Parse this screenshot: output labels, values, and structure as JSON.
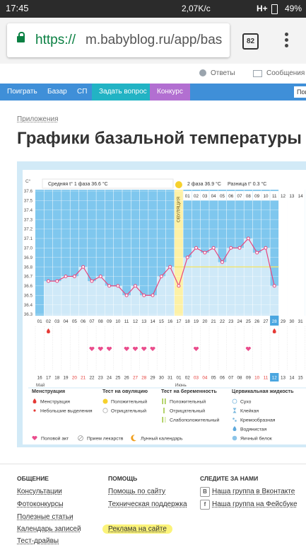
{
  "status_bar": {
    "time": "17:45",
    "speed": "2,07K/c",
    "network": "H+",
    "battery": "49%"
  },
  "browser": {
    "url_scheme": "https://",
    "url_rest": "m.babyblog.ru/app/bas",
    "tabs": "82"
  },
  "header": {
    "links": [
      "Ответы",
      "Сообщения"
    ]
  },
  "nav": {
    "items": [
      "Поиграть",
      "Базар",
      "СП",
      "Задать вопрос",
      "Конкурс"
    ],
    "search": "Пои"
  },
  "breadcrumb": "Приложения",
  "title": "Графики базальной температуры",
  "chart_data": {
    "type": "line",
    "y_unit": "С°",
    "phase1": "Средняя t° 1 фаза 36.6 °C",
    "phase2": "2 фаза 36.9 °C",
    "difference": "Разница t° 0.3 °C",
    "ovulation_label": "ОВУЛЯЦИЯ",
    "categories": [
      "01",
      "02",
      "03",
      "04",
      "05",
      "06",
      "07",
      "08",
      "09",
      "10",
      "11",
      "12",
      "13",
      "14",
      "15",
      "16",
      "17",
      "18",
      "19",
      "20",
      "21",
      "22",
      "23",
      "24",
      "25",
      "26",
      "27",
      "28",
      "29",
      "30",
      "31"
    ],
    "values": [
      null,
      36.65,
      36.65,
      36.7,
      36.7,
      36.8,
      36.65,
      36.7,
      36.6,
      36.6,
      36.5,
      36.6,
      36.5,
      36.5,
      36.7,
      36.8,
      36.6,
      36.9,
      37.0,
      36.95,
      37.0,
      36.85,
      37.0,
      37.0,
      37.1,
      36.95,
      37.0,
      36.6,
      null,
      null,
      null
    ],
    "color": "#e8457d",
    "ylim": [
      36.3,
      37.6
    ],
    "yticks": [
      37.6,
      37.5,
      37.4,
      37.3,
      37.2,
      37.1,
      {
        "value": 37,
        "label": "37.0"
      },
      36.9,
      36.8,
      36.7,
      36.6,
      36.5,
      36.4,
      36.3
    ],
    "grid": true,
    "coverline": 36.8,
    "ovulation_index": 16,
    "today_index": 27,
    "luteal_start": 17,
    "luteal_days": [
      "01",
      "02",
      "03",
      "04",
      "05",
      "06",
      "07",
      "08",
      "09",
      "10",
      "11",
      "12",
      "13",
      "14"
    ],
    "dates": [
      "16",
      "17",
      "18",
      "19",
      "20",
      "21",
      "22",
      "23",
      "24",
      "25",
      "26",
      "27",
      "28",
      "29",
      "30",
      "31",
      "01",
      "02",
      "03",
      "04",
      "05",
      "06",
      "07",
      "08",
      "09",
      "10",
      "11",
      "12",
      "13",
      "14",
      "15"
    ],
    "weekends": [
      4,
      5,
      11,
      12,
      18,
      19,
      25,
      26
    ],
    "months": [
      "Май",
      "Июнь"
    ],
    "month_starts": [
      0,
      16
    ],
    "menstruation": [
      1,
      27
    ],
    "intercourse": [
      6,
      7,
      8,
      10,
      11,
      12,
      13,
      18,
      24
    ]
  },
  "legend": {
    "groups": [
      {
        "title": "Менструация",
        "items": [
          "Менструация",
          "Небольшие выделения"
        ]
      },
      {
        "title": "Тест на овуляцию",
        "items": [
          "Положительный",
          "Отрицательный"
        ]
      },
      {
        "title": "Тест на беременность",
        "items": [
          "Положительный",
          "Отрицательный",
          "Слабоположительный"
        ]
      },
      {
        "title": "Цервикальная жидкость",
        "items": [
          "Сухо",
          "Клейкая",
          "Кремообразная",
          "Водянистая",
          "Яичный белок"
        ]
      }
    ],
    "extra": [
      "Половой акт",
      "Прием лекарств",
      "Лунный календарь"
    ]
  },
  "footer": {
    "columns": [
      {
        "title": "ОБЩЕНИЕ",
        "links": [
          "Консультации",
          "Фотоконкурсы",
          "Полезные статьи",
          "Календарь записей",
          "Тест-драйвы"
        ]
      },
      {
        "title": "ПОМОЩЬ",
        "links": [
          "Помощь по сайту",
          "Техническая поддержка",
          "Реклама на сайте"
        ]
      },
      {
        "title": "СЛЕДИТЕ ЗА НАМИ",
        "links": [
          "Наша группа в Вконтакте",
          "Наша группа на Фейсбуке"
        ]
      }
    ],
    "social_icons": [
      "В",
      "f"
    ]
  }
}
